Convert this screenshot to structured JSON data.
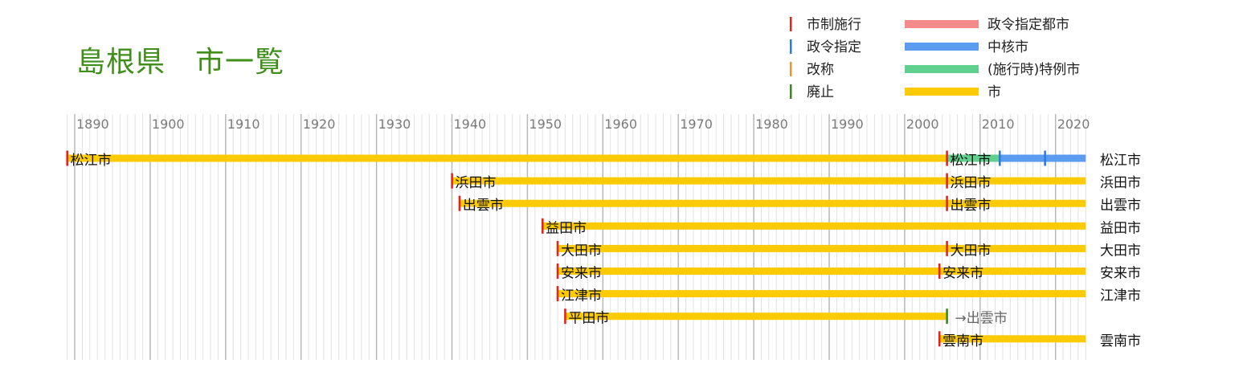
{
  "chart_data": {
    "type": "timeline",
    "title": "島根県　市一覧",
    "x_range": [
      1889,
      2024
    ],
    "ticks": [
      1890,
      1900,
      1910,
      1920,
      1930,
      1940,
      1950,
      1960,
      1970,
      1980,
      1990,
      2000,
      2010,
      2020
    ],
    "grid": true,
    "legend_position": "top-right",
    "legend": {
      "markers": [
        {
          "label": "市制施行",
          "color": "#e8221b"
        },
        {
          "label": "政令指定",
          "color": "#2e7be0"
        },
        {
          "label": "改称",
          "color": "#f0922f"
        },
        {
          "label": "廃止",
          "color": "#3a8a1e"
        }
      ],
      "bars": [
        {
          "label": "政令指定都市",
          "color": "#f48a8a"
        },
        {
          "label": "中核市",
          "color": "#5b9cf0"
        },
        {
          "label": "(施行時)特例市",
          "color": "#5fd08e"
        },
        {
          "label": "市",
          "color": "#fccb06"
        }
      ]
    },
    "cities": [
      {
        "name": "松江市",
        "current_name": "松江市",
        "segments": [
          {
            "start": 1889.0,
            "end": 2005.6,
            "type": "市"
          },
          {
            "start": 2005.6,
            "end": 2012.6,
            "type": "(施行時)特例市"
          },
          {
            "start": 2012.6,
            "end": 2024,
            "type": "中核市"
          }
        ],
        "events": [
          {
            "year": 1889.0,
            "type": "市制施行",
            "label": "松江市"
          },
          {
            "year": 2005.6,
            "type": "市制施行",
            "label": "松江市"
          },
          {
            "year": 2012.6,
            "type": "政令指定"
          },
          {
            "year": 2018.6,
            "type": "政令指定"
          }
        ]
      },
      {
        "name": "浜田市",
        "current_name": "浜田市",
        "segments": [
          {
            "start": 1940.0,
            "end": 2024,
            "type": "市"
          }
        ],
        "events": [
          {
            "year": 1940.0,
            "type": "市制施行",
            "label": "浜田市"
          },
          {
            "year": 2005.6,
            "type": "市制施行",
            "label": "浜田市"
          }
        ]
      },
      {
        "name": "出雲市",
        "current_name": "出雲市",
        "segments": [
          {
            "start": 1941.0,
            "end": 2024,
            "type": "市"
          }
        ],
        "events": [
          {
            "year": 1941.0,
            "type": "市制施行",
            "label": "出雲市"
          },
          {
            "year": 2005.6,
            "type": "市制施行",
            "label": "出雲市"
          }
        ]
      },
      {
        "name": "益田市",
        "current_name": "益田市",
        "segments": [
          {
            "start": 1952.0,
            "end": 2024,
            "type": "市"
          }
        ],
        "events": [
          {
            "year": 1952.0,
            "type": "市制施行",
            "label": "益田市"
          }
        ]
      },
      {
        "name": "大田市",
        "current_name": "大田市",
        "segments": [
          {
            "start": 1954.0,
            "end": 2024,
            "type": "市"
          }
        ],
        "events": [
          {
            "year": 1954.0,
            "type": "市制施行",
            "label": "大田市"
          },
          {
            "year": 2005.6,
            "type": "市制施行",
            "label": "大田市"
          }
        ]
      },
      {
        "name": "安来市",
        "current_name": "安来市",
        "segments": [
          {
            "start": 1954.0,
            "end": 2024,
            "type": "市"
          }
        ],
        "events": [
          {
            "year": 1954.0,
            "type": "市制施行",
            "label": "安来市"
          },
          {
            "year": 2004.6,
            "type": "市制施行",
            "label": "安来市"
          }
        ]
      },
      {
        "name": "江津市",
        "current_name": "江津市",
        "segments": [
          {
            "start": 1954.0,
            "end": 2024,
            "type": "市"
          }
        ],
        "events": [
          {
            "year": 1954.0,
            "type": "市制施行",
            "label": "江津市"
          }
        ]
      },
      {
        "name": "平田市",
        "current_name": "→出雲市",
        "segments": [
          {
            "start": 1955.0,
            "end": 2005.6,
            "type": "市"
          }
        ],
        "events": [
          {
            "year": 1955.0,
            "type": "市制施行",
            "label": "平田市"
          },
          {
            "year": 2005.6,
            "type": "廃止"
          }
        ]
      },
      {
        "name": "雲南市",
        "current_name": "雲南市",
        "segments": [
          {
            "start": 2004.6,
            "end": 2024,
            "type": "市"
          }
        ],
        "events": [
          {
            "year": 2004.6,
            "type": "市制施行",
            "label": "雲南市"
          }
        ]
      }
    ]
  }
}
